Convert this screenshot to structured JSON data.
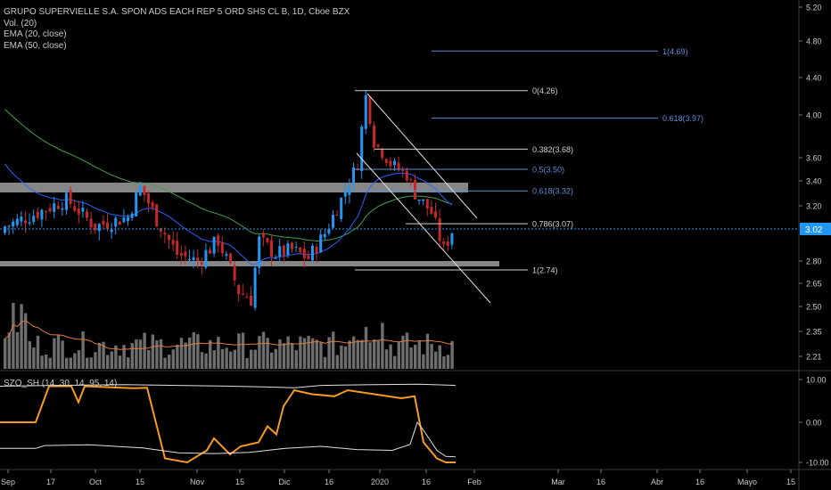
{
  "legend": {
    "title": "GRUPO SUPERVIELLE S.A. SPON ADS EACH REP 5 ORD SHS CL B, 1D, Cboe BZX",
    "vol": "Vol. (20)",
    "ema20": "EMA (20, close)",
    "ema50": "EMA (50, close)"
  },
  "oscillator": {
    "label": "SZO_SH (14, 30, 14, 95, 14)",
    "ticks": [
      "10.00",
      "0.00",
      "-10.00"
    ]
  },
  "price_axis": {
    "ticks": [
      "5.20",
      "4.80",
      "4.40",
      "4.00",
      "3.60",
      "3.40",
      "3.20",
      "2.80",
      "2.65",
      "2.50",
      "2.35",
      "2.21"
    ],
    "last_price": "3.02"
  },
  "time_axis": {
    "ticks": [
      "Sep",
      "17",
      "Oct",
      "15",
      "Nov",
      "15",
      "Dic",
      "16",
      "2020",
      "16",
      "Feb",
      "Mar",
      "16",
      "Abr",
      "16",
      "Mayo",
      "15"
    ]
  },
  "fib_labels": {
    "white": [
      "0(4.26)",
      "0.382(3.68)",
      "0.786(3.07)",
      "1(2.74)"
    ],
    "blue": [
      "1(4.69)",
      "0.618(3.97)",
      "0.5(3.50)",
      "0.618(3.32)"
    ]
  },
  "colors": {
    "background": "#000000",
    "up": "#2196f3",
    "down": "#c62828",
    "ema20": "#2962ff",
    "ema50": "#43a047",
    "volume": "#6e6e6e",
    "volume_ma": "#e07a3a",
    "fib_white": "#d0d0d0",
    "fib_blue": "#5b8ed6",
    "support_zone": "#9e9e9e",
    "osc_main": "#f59a23",
    "osc_band": "#e0e0e0",
    "last_price_badge": "#2196f3"
  },
  "chart_data": {
    "type": "candlestick",
    "series": [
      {
        "name": "Vol. (20)"
      },
      {
        "name": "EMA (20, close)"
      },
      {
        "name": "EMA (50, close)"
      },
      {
        "name": "SZO_SH (14, 30, 14, 95, 14)"
      }
    ],
    "last_close": 3.02,
    "fibonacci": {
      "white": [
        {
          "level": "0",
          "value": 4.26
        },
        {
          "level": "0.382",
          "value": 3.68
        },
        {
          "level": "0.786",
          "value": 3.07
        },
        {
          "level": "1",
          "value": 2.74
        }
      ],
      "blue": [
        {
          "level": "1",
          "value": 4.69
        },
        {
          "level": "0.618",
          "value": 3.97
        },
        {
          "level": "0.5",
          "value": 3.5
        },
        {
          "level": "0.618",
          "value": 3.32
        }
      ]
    },
    "support_zones": [
      3.35,
      2.77
    ],
    "oscillator_range": [
      -10,
      10
    ]
  }
}
